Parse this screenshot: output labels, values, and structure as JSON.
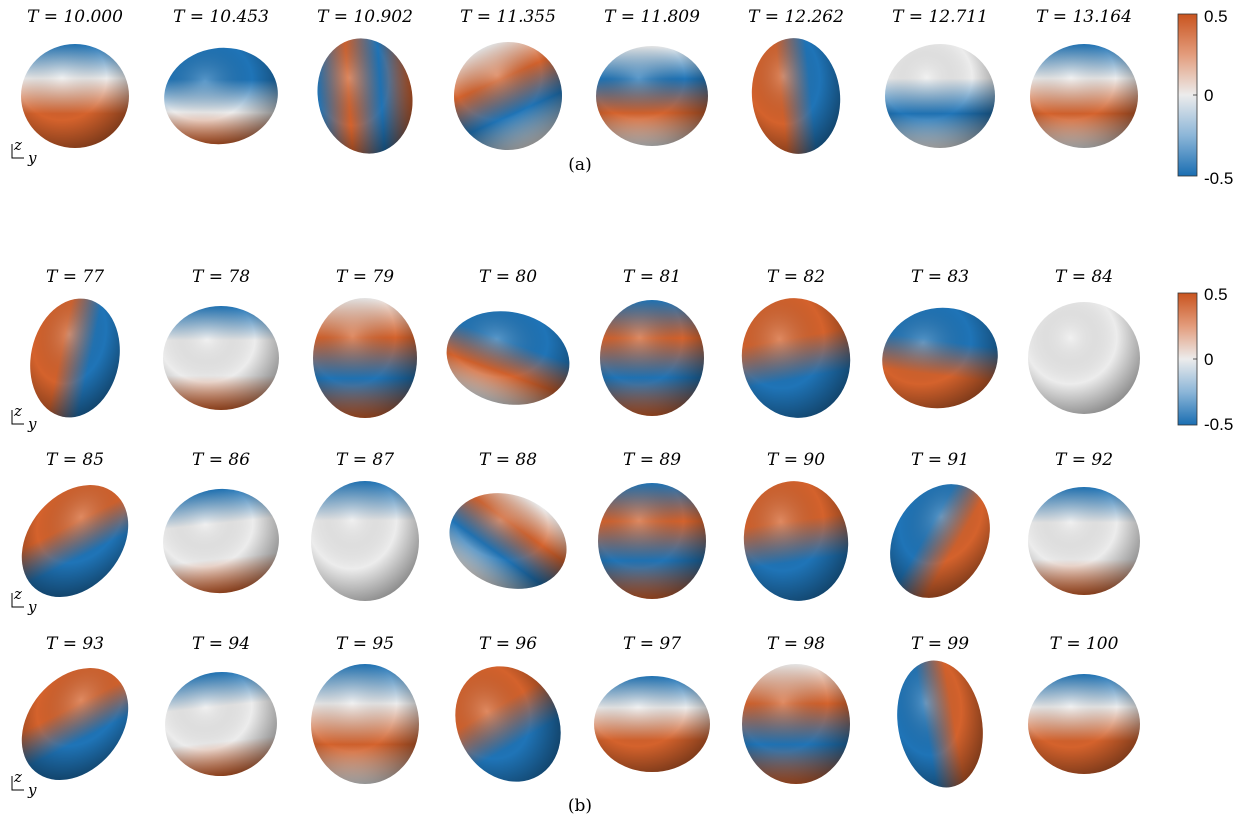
{
  "panel_a": {
    "label": "(a)",
    "titles": [
      "T = 10.000",
      "T = 10.453",
      "T = 10.902",
      "T = 11.355",
      "T = 11.809",
      "T = 12.262",
      "T = 12.711",
      "T = 13.164"
    ]
  },
  "panel_b": {
    "label": "(b)",
    "rows": [
      [
        "T = 77",
        "T = 78",
        "T = 79",
        "T = 80",
        "T = 81",
        "T = 82",
        "T = 83",
        "T = 84"
      ],
      [
        "T = 85",
        "T = 86",
        "T = 87",
        "T = 88",
        "T = 89",
        "T = 90",
        "T = 91",
        "T = 92"
      ],
      [
        "T = 93",
        "T = 94",
        "T = 95",
        "T = 96",
        "T = 97",
        "T = 98",
        "T = 99",
        "T = 100"
      ]
    ]
  },
  "colorbar": {
    "ticks": [
      "0.5",
      "0",
      "-0.5"
    ],
    "colors": {
      "high": "#d4622c",
      "mid": "#ececec",
      "low": "#1f74b7"
    }
  },
  "axes_triad": {
    "vertical": "z",
    "horizontal": "y"
  }
}
